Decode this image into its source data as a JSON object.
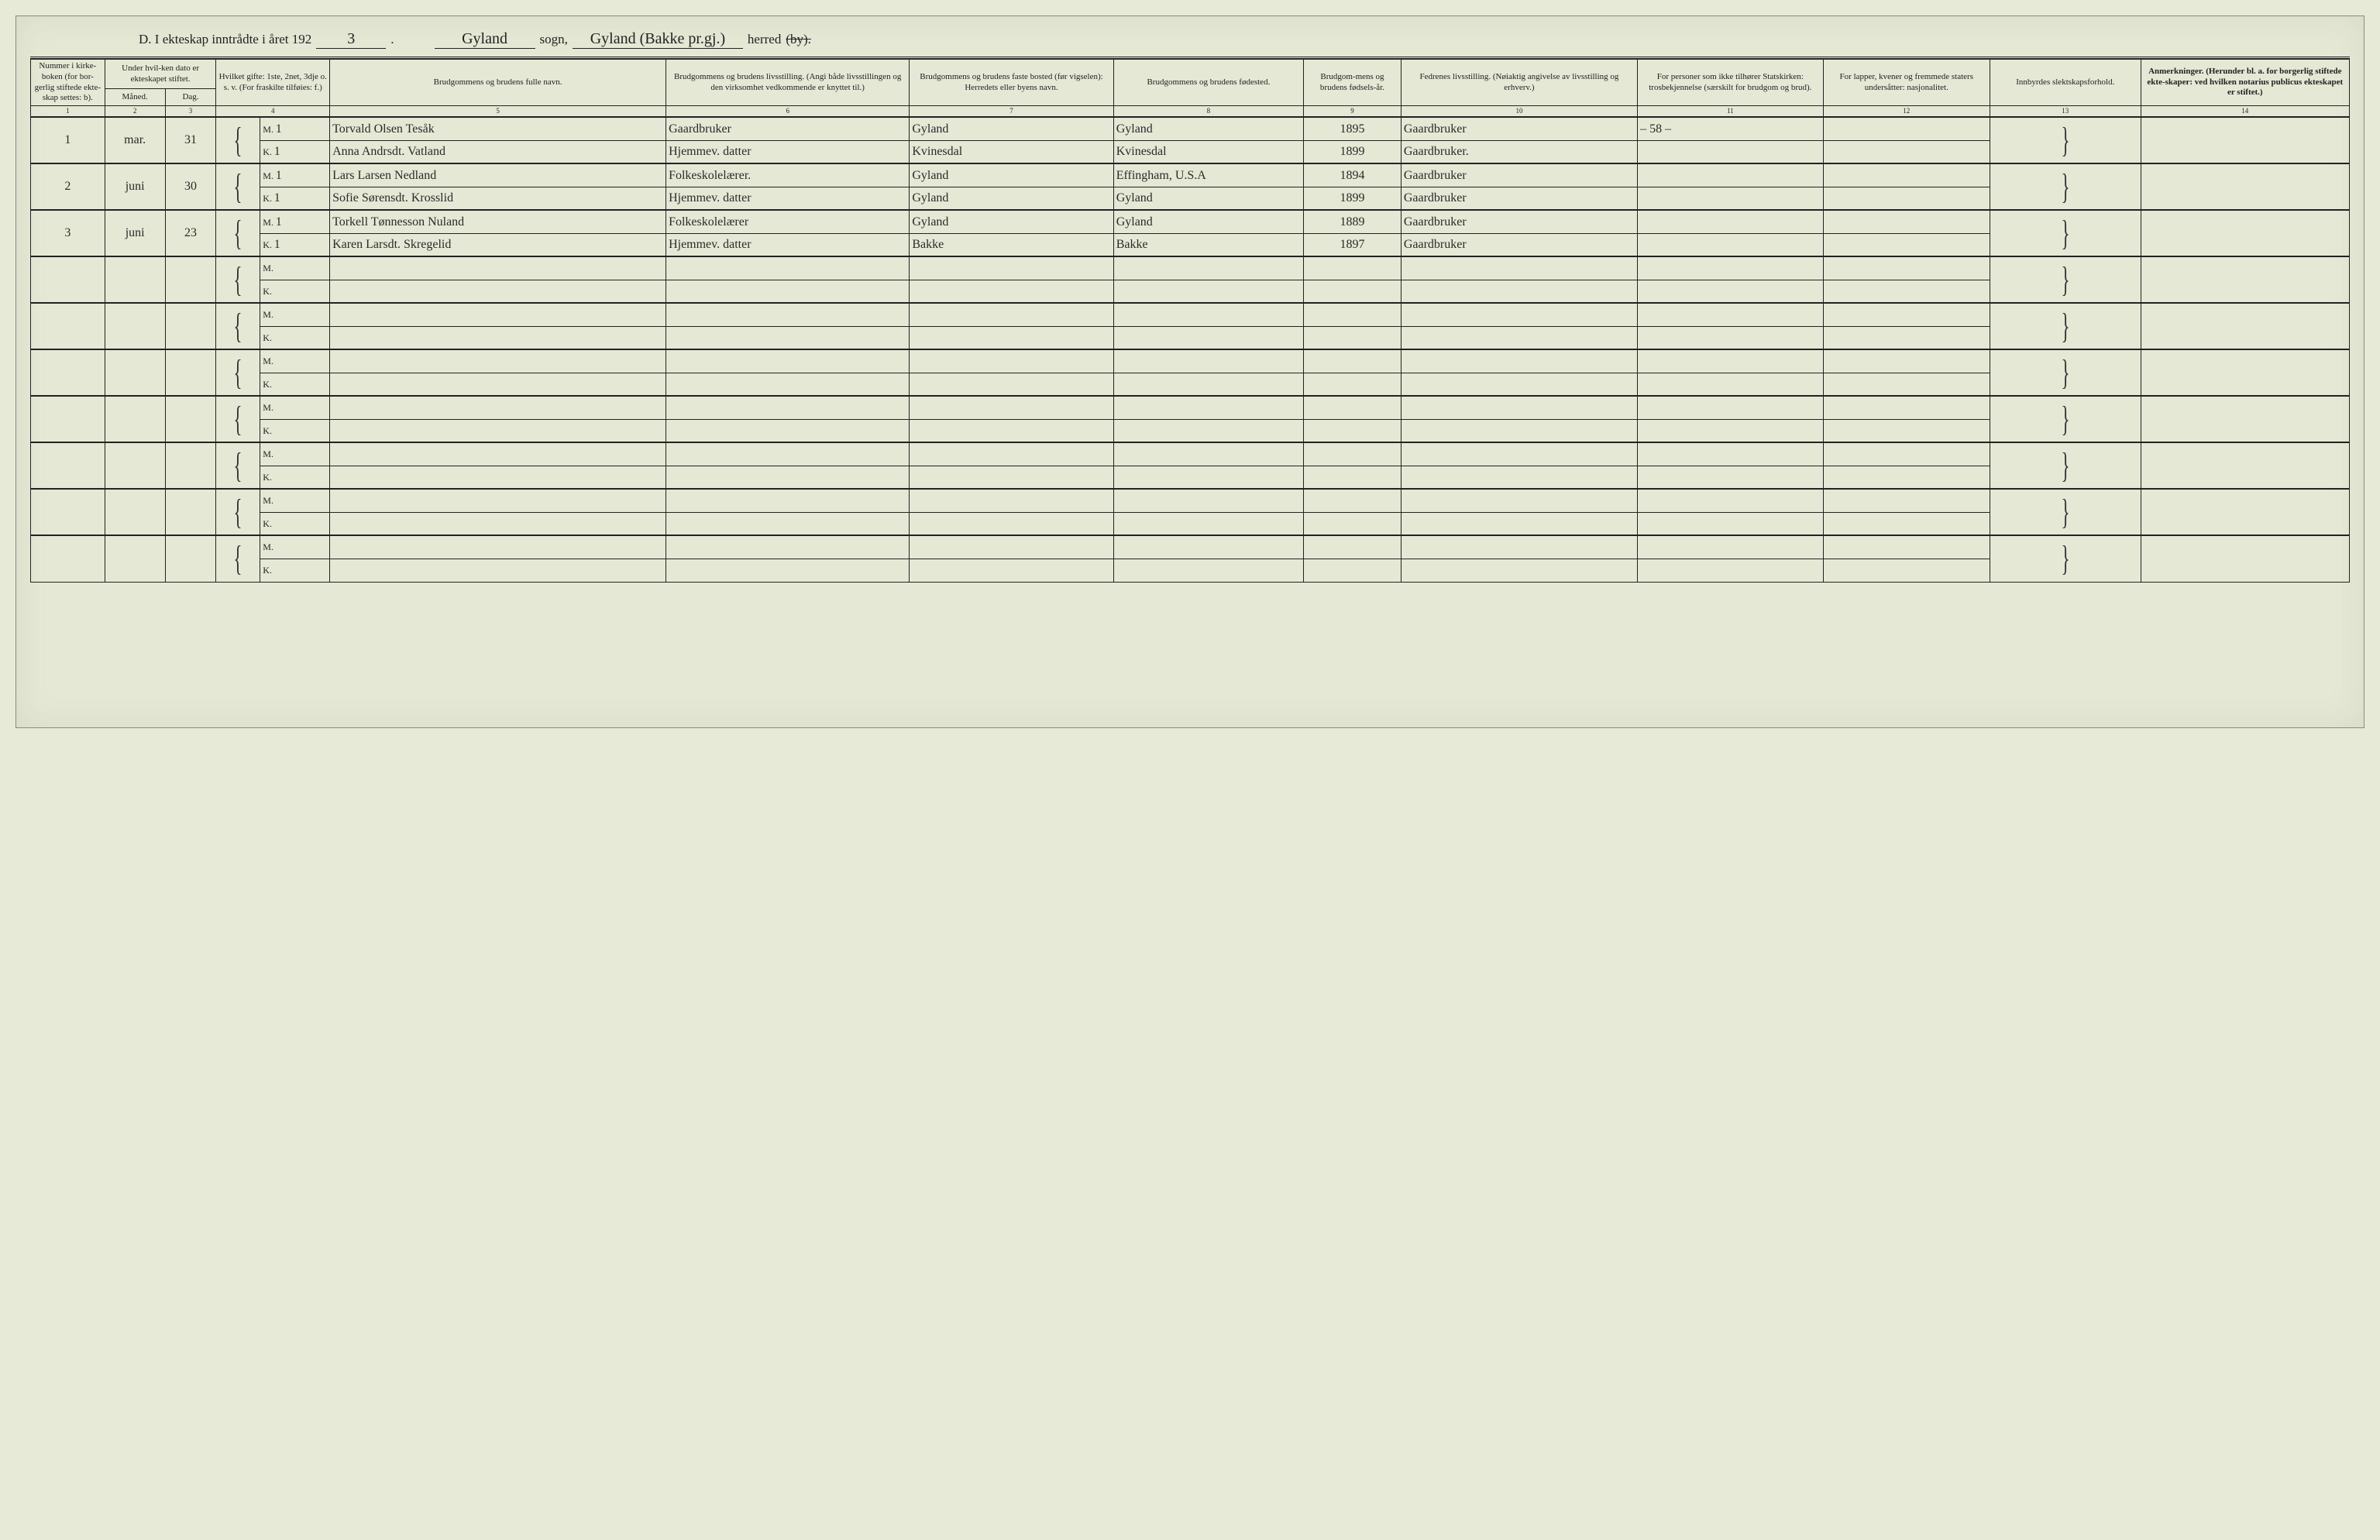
{
  "title": {
    "prefix": "D.  I ekteskap inntrådte i året 192",
    "year_suffix": "3",
    "sogn_label": "sogn,",
    "sogn_value": "Gyland",
    "herred_value": "Gyland (Bakke pr.gj.)",
    "herred_label": "herred",
    "by_struck": "(by)."
  },
  "headers": {
    "c1": "Nummer i kirke-boken (for bor-gerlig stiftede ekte-skap settes: b).",
    "c2_top": "Under hvil-ken dato er ekteskapet stiftet.",
    "c2a": "Måned.",
    "c2b": "Dag.",
    "c4": "Hvilket gifte: 1ste, 2net, 3dje o. s. v. (For fraskilte tilføies: f.)",
    "c5": "Brudgommens og brudens fulle navn.",
    "c6": "Brudgommens og brudens livsstilling. (Angi både livsstillingen og den virksomhet vedkommende er knyttet til.)",
    "c7": "Brudgommens og brudens faste bosted (før vigselen): Herredets eller byens navn.",
    "c8": "Brudgommens og brudens fødested.",
    "c9": "Brudgom-mens og brudens fødsels-år.",
    "c10": "Fedrenes livsstilling. (Nøiaktig angivelse av livsstilling og erhverv.)",
    "c11": "For personer som ikke tilhører Statskirken: trosbekjennelse (særskilt for brudgom og brud).",
    "c12": "For lapper, kvener og fremmede staters undersåtter: nasjonalitet.",
    "c13": "Innbyrdes slektskapsforhold.",
    "c14": "Anmerkninger. (Herunder bl. a. for borgerlig stiftede ekte-skaper: ved hvilken notarius publicus ekteskapet er stiftet.)"
  },
  "colnums": [
    "1",
    "2",
    "3",
    "4",
    "5",
    "6",
    "7",
    "8",
    "9",
    "10",
    "11",
    "12",
    "13",
    "14"
  ],
  "entries": [
    {
      "num": "1",
      "month": "mar.",
      "day": "31",
      "m": {
        "mk": "M.",
        "gifte": "1",
        "name": "Torvald Olsen Tesåk",
        "occ": "Gaardbruker",
        "res": "Gyland",
        "birthplace": "Gyland",
        "year": "1895",
        "father": "Gaardbruker",
        "c11": "– 58 –"
      },
      "k": {
        "mk": "K.",
        "gifte": "1",
        "name": "Anna Andrsdt. Vatland",
        "occ": "Hjemmev. datter",
        "res": "Kvinesdal",
        "birthplace": "Kvinesdal",
        "year": "1899",
        "father": "Gaardbruker.",
        "c11": ""
      }
    },
    {
      "num": "2",
      "month": "juni",
      "day": "30",
      "m": {
        "mk": "M.",
        "gifte": "1",
        "name": "Lars Larsen Nedland",
        "occ": "Folkeskolelærer.",
        "res": "Gyland",
        "birthplace": "Effingham, U.S.A",
        "year": "1894",
        "father": "Gaardbruker",
        "c11": ""
      },
      "k": {
        "mk": "K.",
        "gifte": "1",
        "name": "Sofie Sørensdt. Krosslid",
        "occ": "Hjemmev. datter",
        "res": "Gyland",
        "birthplace": "Gyland",
        "year": "1899",
        "father": "Gaardbruker",
        "c11": ""
      }
    },
    {
      "num": "3",
      "month": "juni",
      "day": "23",
      "m": {
        "mk": "M.",
        "gifte": "1",
        "name": "Torkell Tønnesson Nuland",
        "occ": "Folkeskolelærer",
        "res": "Gyland",
        "birthplace": "Gyland",
        "year": "1889",
        "father": "Gaardbruker",
        "c11": ""
      },
      "k": {
        "mk": "K.",
        "gifte": "1",
        "name": "Karen Larsdt. Skregelid",
        "occ": "Hjemmev. datter",
        "res": "Bakke",
        "birthplace": "Bakke",
        "year": "1897",
        "father": "Gaardbruker",
        "c11": ""
      }
    }
  ],
  "blank_pairs": 7,
  "mk_labels": {
    "m": "M.",
    "k": "K."
  },
  "colors": {
    "paper": "#e5e8d5",
    "ink": "#222222",
    "hand": "#2a2a2a"
  }
}
